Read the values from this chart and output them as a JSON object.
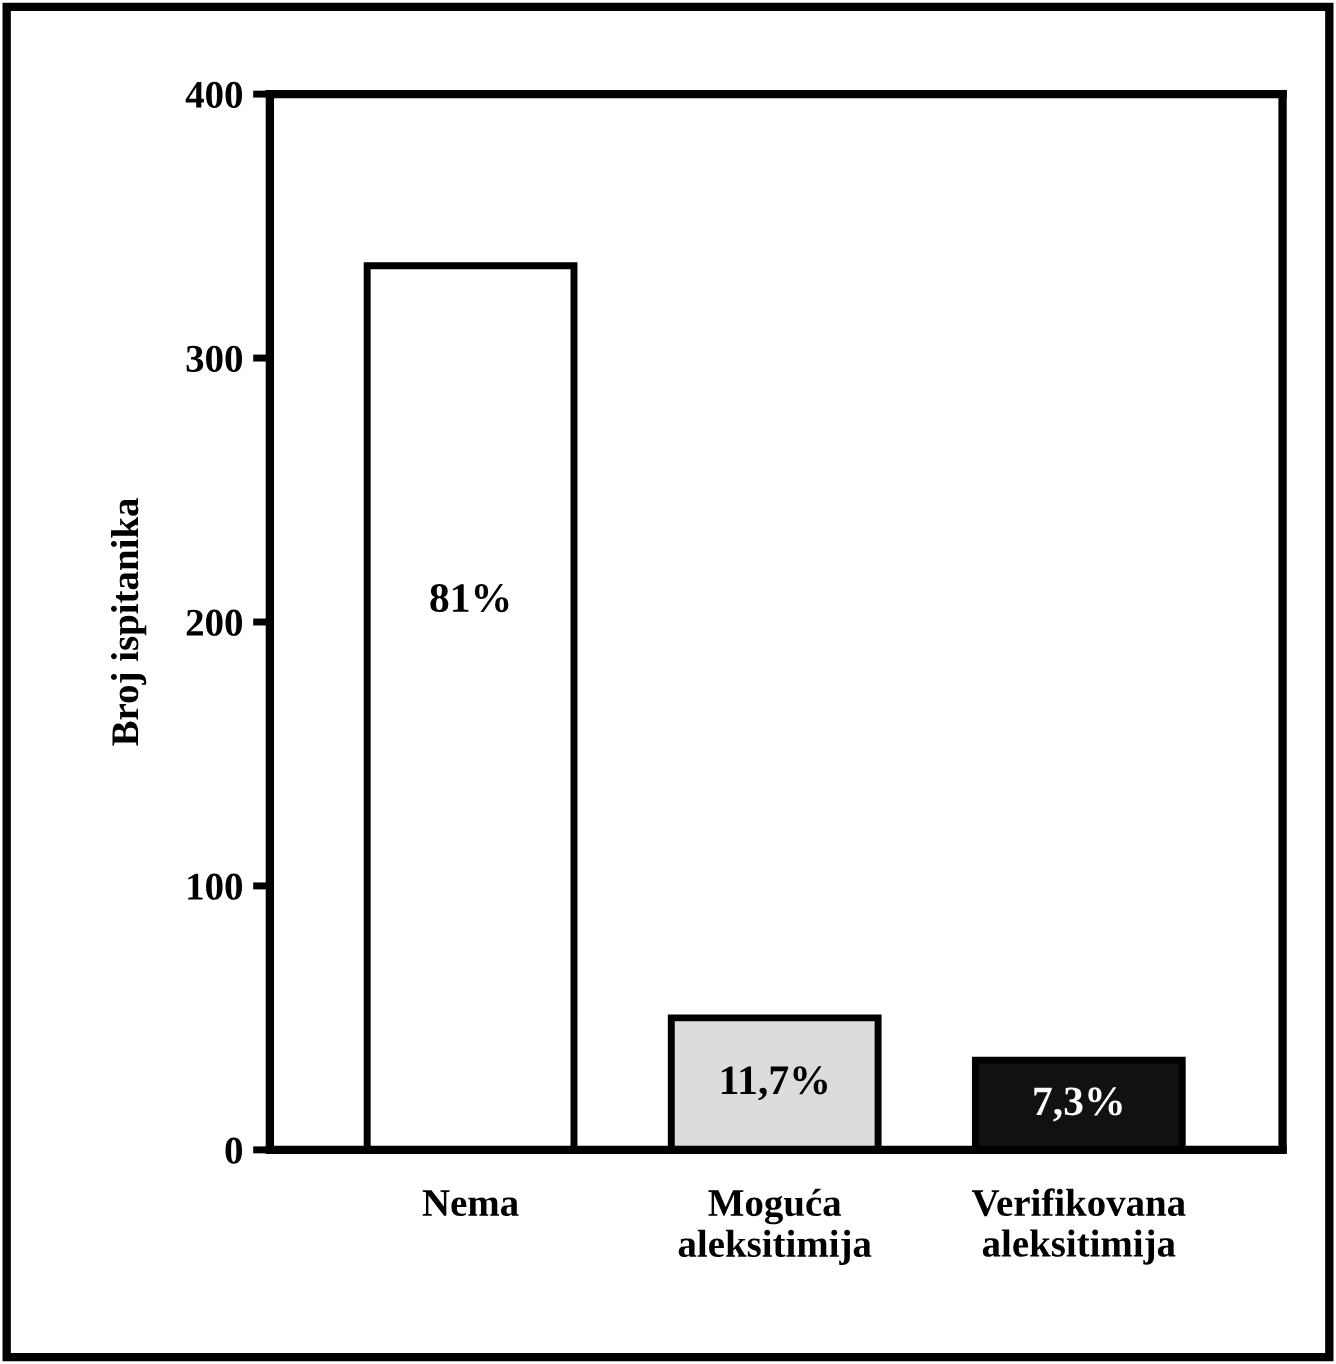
{
  "chart_data": {
    "type": "bar",
    "ylabel": "Broj ispitanika",
    "categories": [
      "Nema",
      "Moguća\naleksitimija",
      "Verifikovana\naleksitimija"
    ],
    "values": [
      335,
      50,
      34
    ],
    "colors": [
      "#ffffff",
      "#dcdcdc",
      "#111111"
    ],
    "annotations": [
      "81%",
      "11,7%",
      "7,3%"
    ],
    "ylim": [
      0,
      400
    ],
    "yticks": [
      0,
      100,
      200,
      300,
      400
    ],
    "grid": false,
    "legend": false
  }
}
